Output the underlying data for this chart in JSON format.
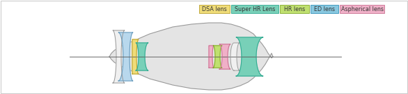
{
  "background_color": "#ffffff",
  "border_color": "#cccccc",
  "lens_body_fill": "#e4e4e4",
  "lens_body_edge": "#999999",
  "axis_color": "#555555",
  "blue_fill": "#b8d8ed",
  "blue_edge": "#6699bb",
  "white_fill": "#f0f0f0",
  "white_edge": "#999999",
  "legend_items": [
    {
      "label": "DSA lens",
      "fill": "#f0dc78",
      "edge": "#b8a030"
    },
    {
      "label": "Super HR Lens",
      "fill": "#78d0b8",
      "edge": "#30a890"
    },
    {
      "label": "HR lens",
      "fill": "#c0e070",
      "edge": "#80a828"
    },
    {
      "label": "ED lens",
      "fill": "#88c8e0",
      "edge": "#3090b8"
    },
    {
      "label": "Aspherical lens",
      "fill": "#f0b0c8",
      "edge": "#c87090"
    }
  ],
  "figsize": [
    5.86,
    1.36
  ],
  "dpi": 100
}
